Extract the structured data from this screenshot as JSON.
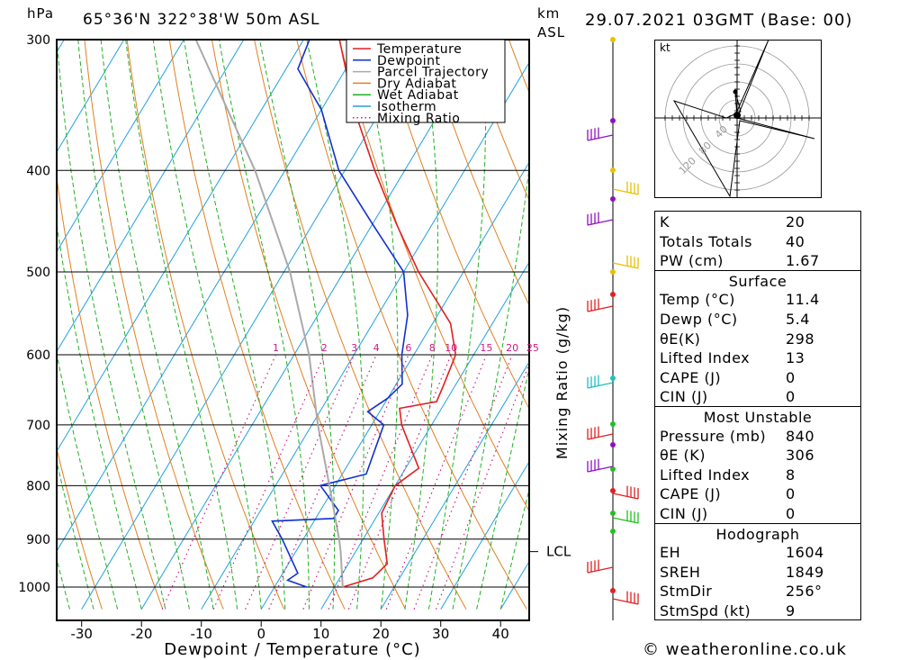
{
  "header": {
    "pressure_unit": "hPa",
    "location": "65°36'N  322°38'W  50m  ASL",
    "km_label": "km",
    "asl_label": "ASL",
    "datetime": "29.07.2021  03GMT  (Base: 00)"
  },
  "footer": {
    "credit": "© weatheronline.co.uk"
  },
  "chart_data": [
    {
      "type": "line",
      "title": "Skew-T log-P diagram",
      "xlabel": "Dewpoint / Temperature (°C)",
      "ylabel": "hPa",
      "right_label": "Mixing Ratio (g/kg)",
      "xlim": [
        -37,
        43
      ],
      "ylim_hpa": [
        1050,
        300
      ],
      "x_ticks": [
        "-30",
        "-20",
        "-10",
        "0",
        "10",
        "20",
        "30",
        "40"
      ],
      "x_tick_values": [
        -30,
        -20,
        -10,
        0,
        10,
        20,
        30,
        40
      ],
      "pressure_ticks": [
        "300",
        "400",
        "500",
        "600",
        "700",
        "800",
        "900",
        "1000"
      ],
      "pressure_values": [
        300,
        400,
        500,
        600,
        700,
        800,
        900,
        1000
      ],
      "mixing_ratio_labels": [
        "1",
        "2",
        "3",
        "4",
        "6",
        "8",
        "10",
        "15",
        "20",
        "25"
      ],
      "mixing_ratio_values": [
        1,
        2,
        3,
        4,
        6,
        8,
        10,
        15,
        20,
        25
      ],
      "lcl_label": "LCL",
      "lcl_pressure": 925,
      "legend": [
        "Temperature",
        "Dewpoint",
        "Parcel Trajectory",
        "Dry Adiabat",
        "Wet Adiabat",
        "Isotherm",
        "Mixing Ratio"
      ],
      "colors": {
        "temperature": "#e02020",
        "dewpoint": "#1030d0",
        "parcel": "#aaaaaa",
        "dry_adiabat": "#e08020",
        "wet_adiabat": "#20b020",
        "isotherm": "#20a0e0",
        "mixing_ratio": "#d01880"
      },
      "series": [
        {
          "name": "Temperature",
          "color": "#e02020",
          "points": [
            [
              1000,
              11.4
            ],
            [
              980,
              15.5
            ],
            [
              950,
              16.5
            ],
            [
              900,
              13.5
            ],
            [
              850,
              10.5
            ],
            [
              800,
              10
            ],
            [
              770,
              12.2
            ],
            [
              700,
              5
            ],
            [
              675,
              3
            ],
            [
              665,
              8.5
            ],
            [
              640,
              8
            ],
            [
              600,
              7
            ],
            [
              560,
              3
            ],
            [
              500,
              -7.5
            ],
            [
              450,
              -16
            ],
            [
              400,
              -25
            ],
            [
              350,
              -34.5
            ],
            [
              300,
              -44
            ]
          ]
        },
        {
          "name": "Dewpoint",
          "color": "#1030d0",
          "points": [
            [
              1000,
              5.4
            ],
            [
              985,
              1.5
            ],
            [
              970,
              2.5
            ],
            [
              900,
              -3.5
            ],
            [
              865,
              -7
            ],
            [
              860,
              3
            ],
            [
              845,
              3
            ],
            [
              800,
              -2.5
            ],
            [
              780,
              4
            ],
            [
              700,
              2
            ],
            [
              680,
              -2
            ],
            [
              660,
              0
            ],
            [
              640,
              1
            ],
            [
              600,
              -2
            ],
            [
              550,
              -5
            ],
            [
              500,
              -10
            ],
            [
              450,
              -20
            ],
            [
              400,
              -31
            ],
            [
              350,
              -40
            ],
            [
              320,
              -48
            ],
            [
              300,
              -49
            ]
          ]
        },
        {
          "name": "Parcel Trajectory",
          "color": "#aaaaaa",
          "points": [
            [
              1000,
              11.4
            ],
            [
              925,
              7.5
            ],
            [
              900,
              6
            ],
            [
              800,
              -1
            ],
            [
              700,
              -9
            ],
            [
              600,
              -17.5
            ],
            [
              500,
              -29
            ],
            [
              400,
              -45
            ],
            [
              300,
              -68
            ]
          ]
        }
      ]
    },
    {
      "type": "scatter",
      "title": "Hodograph",
      "unit_label": "kt",
      "ring_labels": [
        "40",
        "80",
        "120"
      ]
    }
  ],
  "indices": {
    "basic": [
      {
        "label": "K",
        "value": "20"
      },
      {
        "label": "Totals Totals",
        "value": "40"
      },
      {
        "label": "PW (cm)",
        "value": "1.67"
      }
    ],
    "surface_title": "Surface",
    "surface": [
      {
        "label": "Temp (°C)",
        "value": "11.4"
      },
      {
        "label": "Dewp (°C)",
        "value": "5.4"
      },
      {
        "label": "θE(K)",
        "value": "298"
      },
      {
        "label": "Lifted Index",
        "value": "13"
      },
      {
        "label": "CAPE (J)",
        "value": "0"
      },
      {
        "label": "CIN (J)",
        "value": "0"
      }
    ],
    "unstable_title": "Most Unstable",
    "unstable": [
      {
        "label": "Pressure (mb)",
        "value": "840"
      },
      {
        "label": "θE (K)",
        "value": "306"
      },
      {
        "label": "Lifted Index",
        "value": "8"
      },
      {
        "label": "CAPE (J)",
        "value": "0"
      },
      {
        "label": "CIN (J)",
        "value": "0"
      }
    ],
    "hodo_title": "Hodograph",
    "hodo": [
      {
        "label": "EH",
        "value": "1604"
      },
      {
        "label": "SREH",
        "value": "1849"
      },
      {
        "label": "StmDir",
        "value": "256°"
      },
      {
        "label": "StmSpd (kt)",
        "value": "9"
      }
    ]
  }
}
